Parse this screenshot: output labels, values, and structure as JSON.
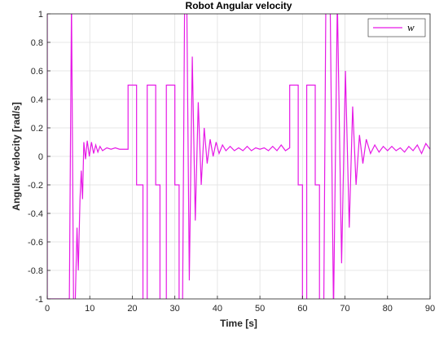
{
  "chart_data": {
    "type": "line",
    "title": "Robot Angular velocity",
    "x_label": "Time [s]",
    "y_label": "Angular velocity [rad/s]",
    "xlim": [
      0,
      90
    ],
    "ylim": [
      -1,
      1
    ],
    "xticks": [
      0,
      10,
      20,
      30,
      40,
      50,
      60,
      70,
      80,
      90
    ],
    "yticks": [
      -1,
      -0.8,
      -0.6,
      -0.4,
      -0.2,
      0,
      0.2,
      0.4,
      0.6,
      0.8,
      1
    ],
    "grid": true,
    "legend": "upper right",
    "x": [
      0,
      0,
      5.2,
      5.7,
      6.2,
      6.6,
      7.0,
      7.3,
      7.7,
      8.0,
      8.3,
      8.6,
      9.0,
      9.4,
      9.9,
      10.4,
      10.9,
      11.4,
      11.9,
      12.4,
      13,
      14,
      15,
      16,
      17,
      18,
      19,
      19,
      21,
      21,
      22.5,
      22.5,
      23.5,
      23.5,
      25.5,
      25.5,
      26.5,
      26.5,
      28,
      28,
      30,
      30,
      31,
      31,
      31.8,
      32.3,
      32.8,
      33.4,
      34.1,
      34.8,
      35.5,
      36.2,
      36.9,
      37.6,
      38.3,
      39,
      39.7,
      40.4,
      41.2,
      42,
      43,
      44,
      45,
      46,
      47,
      48,
      49,
      50,
      51,
      52,
      53,
      54,
      55,
      56,
      57,
      57,
      59,
      59,
      60,
      60,
      61,
      61,
      63,
      63,
      64,
      64,
      65,
      65.5,
      66.5,
      67.3,
      68.2,
      69.2,
      70.1,
      71,
      71.8,
      72.6,
      73.4,
      74.2,
      75,
      76,
      77,
      78,
      79,
      80,
      81,
      82,
      83,
      84,
      85,
      86,
      87,
      88,
      89,
      90
    ],
    "series": [
      {
        "name": "w",
        "color": "#e619e6",
        "values": [
          1,
          -1,
          -1,
          1.1,
          -1.1,
          -1,
          -0.5,
          -0.8,
          -0.3,
          -0.1,
          -0.3,
          0.1,
          -0.02,
          0.11,
          0.0,
          0.1,
          0.02,
          0.08,
          0.03,
          0.07,
          0.04,
          0.06,
          0.05,
          0.06,
          0.05,
          0.05,
          0.05,
          0.5,
          0.5,
          -0.2,
          -0.2,
          -1.1,
          -1.1,
          0.5,
          0.5,
          -0.2,
          -0.2,
          -1.1,
          -1.1,
          0.5,
          0.5,
          -0.2,
          -0.2,
          -1.1,
          -1.1,
          1.1,
          1.1,
          -0.87,
          0.7,
          -0.45,
          0.38,
          -0.2,
          0.2,
          -0.05,
          0.12,
          0,
          0.1,
          0.02,
          0.08,
          0.04,
          0.07,
          0.04,
          0.06,
          0.04,
          0.07,
          0.04,
          0.06,
          0.05,
          0.06,
          0.04,
          0.07,
          0.04,
          0.08,
          0.04,
          0.06,
          0.5,
          0.5,
          -0.2,
          -0.2,
          -1.1,
          -1.1,
          0.5,
          0.5,
          -0.2,
          -0.2,
          -1.1,
          -1.1,
          1.1,
          1.1,
          -1.1,
          1.1,
          -0.75,
          0.6,
          -0.5,
          0.35,
          -0.2,
          0.15,
          -0.05,
          0.12,
          0.02,
          0.08,
          0.03,
          0.07,
          0.04,
          0.07,
          0.04,
          0.06,
          0.03,
          0.07,
          0.04,
          0.08,
          0.02,
          0.09,
          0.05
        ]
      }
    ]
  }
}
